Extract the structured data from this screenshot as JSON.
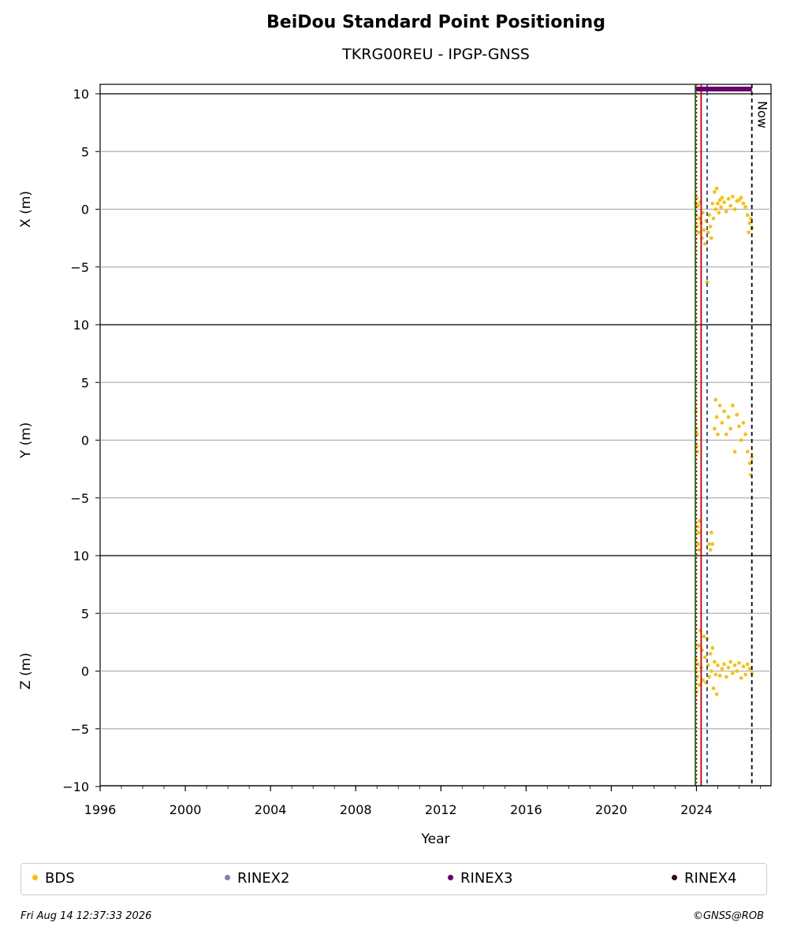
{
  "chart_data": {
    "type": "scatter",
    "title": "BeiDou Standard Point Positioning",
    "subtitle": "TKRG00REU - IPGP-GNSS",
    "xlabel": "Year",
    "xlim": [
      1996,
      2027.5
    ],
    "xticks": [
      1996,
      2000,
      2004,
      2008,
      2012,
      2016,
      2020,
      2024
    ],
    "grid": "horizontal",
    "panels": [
      {
        "ylabel": "X (m)",
        "ylim": [
          -10,
          10
        ],
        "yticks": [
          10,
          5,
          0,
          -5
        ],
        "series": [
          {
            "name": "BDS",
            "x": [
              2023.96,
              2023.98,
              2024.0,
              2024.03,
              2024.06,
              2024.1,
              2024.14,
              2024.18,
              2024.22,
              2024.26,
              2024.3,
              2024.35,
              2024.4,
              2024.45,
              2024.5,
              2024.55,
              2024.6,
              2024.65,
              2024.7,
              2024.75,
              2024.8,
              2024.85,
              2024.9,
              2024.95,
              2025.0,
              2025.05,
              2025.1,
              2025.15,
              2025.2,
              2025.3,
              2025.4,
              2025.5,
              2025.6,
              2025.7,
              2025.8,
              2025.9,
              2026.0,
              2026.1,
              2026.2,
              2026.3,
              2026.4,
              2026.45,
              2026.5,
              2026.55,
              2026.6
            ],
            "y": [
              0.5,
              -0.5,
              1.0,
              -1.5,
              0.3,
              -2.0,
              -0.8,
              0.6,
              -1.2,
              -2.5,
              -0.3,
              -1.8,
              -3.0,
              -1.0,
              -6.3,
              -2.0,
              -0.5,
              -1.5,
              -2.5,
              0.5,
              -0.8,
              1.5,
              0.0,
              1.8,
              0.5,
              -0.3,
              0.8,
              0.2,
              1.0,
              0.6,
              -0.2,
              0.9,
              0.3,
              1.1,
              0.0,
              0.7,
              0.8,
              1.0,
              0.5,
              0.2,
              -0.5,
              -2.0,
              -1.2,
              -0.8,
              -1.6
            ]
          }
        ]
      },
      {
        "ylabel": "Y (m)",
        "ylim": [
          -10,
          10
        ],
        "yticks": [
          10,
          5,
          0,
          -5
        ],
        "series": [
          {
            "name": "BDS",
            "x": [
              2023.97,
              2023.99,
              2024.0,
              2024.02,
              2024.04,
              2024.05,
              2024.08,
              2024.1,
              2024.12,
              2024.15,
              2024.6,
              2024.65,
              2024.7,
              2024.75,
              2024.85,
              2024.9,
              2024.95,
              2025.0,
              2025.1,
              2025.2,
              2025.3,
              2025.4,
              2025.5,
              2025.6,
              2025.7,
              2025.8,
              2025.9,
              2026.0,
              2026.1,
              2026.2,
              2026.3,
              2026.4,
              2026.5,
              2026.55,
              2026.6
            ],
            "y": [
              2.5,
              1.0,
              -0.5,
              0.5,
              -1.0,
              -7.5,
              -9.0,
              -8.0,
              -9.5,
              -7.0,
              -9.0,
              -9.5,
              -8.0,
              -9.0,
              1.0,
              3.5,
              2.0,
              0.5,
              3.0,
              1.5,
              2.5,
              0.5,
              2.0,
              1.0,
              3.0,
              -1.0,
              2.2,
              1.2,
              0.0,
              1.5,
              0.5,
              -1.0,
              -2.0,
              -3.0,
              -1.5
            ]
          }
        ]
      },
      {
        "ylabel": "Z (m)",
        "ylim": [
          -10,
          10
        ],
        "yticks": [
          10,
          5,
          0,
          -5,
          -10
        ],
        "series": [
          {
            "name": "BDS",
            "x": [
              2023.96,
              2023.98,
              2024.0,
              2024.03,
              2024.06,
              2024.1,
              2024.14,
              2024.18,
              2024.22,
              2024.26,
              2024.3,
              2024.35,
              2024.4,
              2024.45,
              2024.5,
              2024.55,
              2024.6,
              2024.65,
              2024.7,
              2024.75,
              2024.8,
              2024.85,
              2024.9,
              2024.95,
              2025.0,
              2025.1,
              2025.2,
              2025.3,
              2025.4,
              2025.5,
              2025.6,
              2025.7,
              2025.8,
              2025.9,
              2026.0,
              2026.1,
              2026.2,
              2026.3,
              2026.4,
              2026.5,
              2026.6
            ],
            "y": [
              0.0,
              1.0,
              -1.8,
              -0.5,
              0.6,
              2.2,
              -1.2,
              3.5,
              0.3,
              1.8,
              -0.8,
              3.0,
              1.2,
              -1.0,
              2.8,
              0.5,
              -0.5,
              1.5,
              0.0,
              2.0,
              -1.5,
              0.8,
              -0.3,
              -2.0,
              0.5,
              -0.4,
              0.2,
              0.6,
              -0.5,
              0.3,
              0.8,
              -0.2,
              0.5,
              0.0,
              0.7,
              -0.6,
              0.4,
              -0.3,
              0.6,
              0.2,
              -0.2
            ]
          }
        ]
      }
    ],
    "vertical_markers": [
      {
        "x": 2023.95,
        "color": "#008000",
        "style": "solid"
      },
      {
        "x": 2024.0,
        "color": "#cc0000",
        "style": "dotted"
      },
      {
        "x": 2024.22,
        "color": "#cc0000",
        "style": "solid"
      },
      {
        "x": 2024.5,
        "color": "#1f4e99",
        "style": "dashed"
      },
      {
        "x": 2026.6,
        "color": "#000000",
        "style": "dashed",
        "label": "Now"
      }
    ],
    "rinex3_bar": {
      "x": [
        2023.95,
        2026.6
      ],
      "y": 10.4,
      "color": "#6a006a"
    },
    "legend": [
      {
        "name": "BDS",
        "color": "#ffbf00"
      },
      {
        "name": "RINEX2",
        "color": "#8080bb"
      },
      {
        "name": "RINEX3",
        "color": "#6a006a"
      },
      {
        "name": "RINEX4",
        "color": "#2a0a1a"
      }
    ],
    "legend_position": "bottom"
  },
  "footer": {
    "timestamp": "Fri Aug 14 12:37:33 2026",
    "credit": "©GNSS@ROB"
  }
}
